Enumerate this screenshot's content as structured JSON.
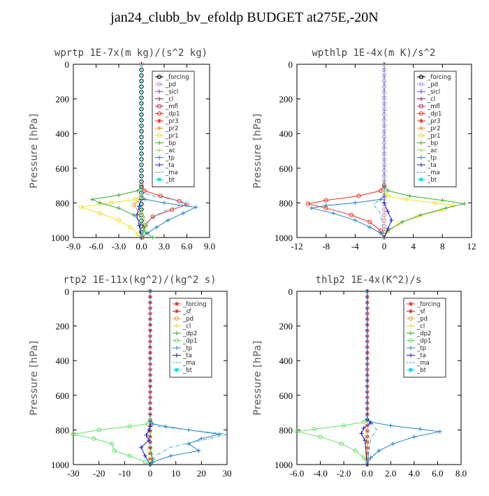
{
  "figure": {
    "title": "jan24_clubb_bv_efoldp  BUDGET at275E,-20N"
  },
  "colors": {
    "forcing": "#000000",
    "pd": "#c58ee8",
    "sicl": "#7a2fd0",
    "cl": "#8b1a5c",
    "mfl": "#cc2d5a",
    "dp1": "#e8301f",
    "dp2": "#2ea02e",
    "pr3": "#e8261e",
    "pr2": "#f0a030",
    "pr1": "#f2e020",
    "bp": "#33aa33",
    "ac": "#80e040",
    "tp": "#2080c8",
    "ta": "#1a1ad0",
    "ma": "#30a8d8",
    "bt": "#20d8e8",
    "sf": "#e02020",
    "cl_y": "#f0d020",
    "dp1_g": "#66e066"
  },
  "chart_data": [
    {
      "type": "line",
      "title": "wprtp  1E-7x(m kg)/(s^2 kg)",
      "ylabel": "Pressure [hPa]",
      "xlim": [
        -9,
        9
      ],
      "ylim": [
        0,
        1000
      ],
      "y_inverted": true,
      "xticks": [
        "-9.0",
        "-6.0",
        "-3.0",
        "0.0",
        "3.0",
        "6.0",
        "9.0"
      ],
      "yticks": [
        "0",
        "200",
        "400",
        "600",
        "800",
        "1000"
      ],
      "legend_position": "top-right",
      "legend": [
        "_forcing",
        "_pd",
        "_sicl",
        "_cl",
        "_mfl",
        "_dp1",
        "_pr3",
        "_pr2",
        "_pr1",
        "_bp",
        "_ac",
        "_tp",
        "_ta",
        "_ma",
        "_bt"
      ],
      "series": [
        {
          "name": "_forcing",
          "color": "#000000",
          "marker": "circle",
          "dense": true,
          "x": [
            0,
            0,
            0,
            0,
            0,
            0,
            0,
            0,
            0,
            0,
            0
          ],
          "y": [
            0,
            100,
            200,
            300,
            400,
            500,
            600,
            700,
            800,
            900,
            1000
          ]
        },
        {
          "name": "_pd",
          "color": "#c58ee8",
          "marker": "none",
          "x": [
            0,
            0,
            0,
            0
          ],
          "y": [
            0,
            500,
            800,
            1000
          ]
        },
        {
          "name": "_sicl",
          "color": "#7a2fd0",
          "marker": "none",
          "x": [
            0,
            0,
            0
          ],
          "y": [
            0,
            800,
            1000
          ]
        },
        {
          "name": "_cl",
          "color": "#8b1a5c",
          "marker": "none",
          "x": [
            0,
            0,
            0
          ],
          "y": [
            0,
            800,
            1000
          ]
        },
        {
          "name": "_mfl",
          "color": "#cc2d5a",
          "marker": "none",
          "x": [
            0,
            0,
            0
          ],
          "y": [
            0,
            800,
            1000
          ]
        },
        {
          "name": "_dp1",
          "color": "#e8301f",
          "marker": "circle",
          "x": [
            0,
            0,
            0.4,
            2.5,
            5,
            6,
            4,
            1.5,
            0.5,
            0.1
          ],
          "y": [
            0,
            700,
            730,
            760,
            790,
            810,
            840,
            880,
            930,
            1000
          ]
        },
        {
          "name": "_pr1",
          "color": "#f2e020",
          "marker": "circle",
          "x": [
            0,
            0,
            -0.8,
            -4,
            -8,
            -5.5,
            -3,
            -1.5,
            -0.5,
            0
          ],
          "y": [
            0,
            760,
            780,
            800,
            825,
            860,
            900,
            940,
            980,
            1000
          ]
        },
        {
          "name": "_pr2",
          "color": "#f0a030",
          "marker": "circle",
          "x": [
            0,
            0,
            -0.3,
            -1,
            -0.3,
            0
          ],
          "y": [
            0,
            770,
            790,
            810,
            860,
            1000
          ]
        },
        {
          "name": "_bp",
          "color": "#33aa33",
          "marker": "plus",
          "x": [
            0,
            0,
            -0.5,
            -3,
            -6.5,
            -5.5,
            -3,
            -1,
            0,
            0.5,
            1.5
          ],
          "y": [
            0,
            710,
            730,
            755,
            780,
            800,
            830,
            870,
            920,
            970,
            1000
          ]
        },
        {
          "name": "_ac",
          "color": "#80e040",
          "marker": "plus",
          "x": [
            0,
            0,
            0.3,
            0.6,
            0.3,
            0
          ],
          "y": [
            0,
            820,
            880,
            930,
            970,
            1000
          ]
        },
        {
          "name": "_tp",
          "color": "#2080c8",
          "marker": "plus",
          "x": [
            0,
            0,
            0.5,
            3,
            7.2,
            5.5,
            3.5,
            2,
            0.8,
            0
          ],
          "y": [
            0,
            760,
            780,
            800,
            825,
            860,
            900,
            940,
            975,
            1000
          ]
        },
        {
          "name": "_ta",
          "color": "#1a1ad0",
          "marker": "plus",
          "x": [
            0,
            0,
            -0.3,
            -0.6,
            -0.3,
            0
          ],
          "y": [
            0,
            780,
            820,
            870,
            930,
            1000
          ]
        },
        {
          "name": "_ma",
          "color": "#30a8d8",
          "marker": "none",
          "dash": true,
          "x": [
            0,
            0,
            1.5,
            4,
            6,
            4,
            2,
            0.5,
            0
          ],
          "y": [
            0,
            740,
            760,
            780,
            800,
            830,
            870,
            920,
            1000
          ]
        },
        {
          "name": "_bt",
          "color": "#20d8e8",
          "marker": "none",
          "x": [
            0,
            0,
            0
          ],
          "y": [
            0,
            800,
            1000
          ]
        }
      ]
    },
    {
      "type": "line",
      "title": "wpthlp  1E-4x(m K)/s^2",
      "ylabel": "Pressure [hPa]",
      "xlim": [
        -12,
        12
      ],
      "ylim": [
        0,
        1000
      ],
      "y_inverted": true,
      "xticks": [
        "-12",
        "-8",
        "-4",
        "0",
        "4",
        "8",
        "12"
      ],
      "yticks": [
        "0",
        "200",
        "400",
        "600",
        "800",
        "1000"
      ],
      "legend_position": "top-right",
      "legend": [
        "_forcing",
        "_pd",
        "_sicl",
        "_cl",
        "_mfl",
        "_dp1",
        "_pr3",
        "_pr2",
        "_pr1",
        "_bp",
        "_ac",
        "_tp",
        "_ta",
        "_ma",
        "_bt"
      ],
      "series": [
        {
          "name": "_forcing",
          "color": "#000000",
          "marker": "none",
          "x": [
            0,
            0
          ],
          "y": [
            0,
            1000
          ]
        },
        {
          "name": "_pd",
          "color": "#c58ee8",
          "marker": "circle",
          "dense": true,
          "x": [
            0,
            0,
            0,
            0,
            0,
            0,
            0,
            0,
            0,
            0,
            0
          ],
          "y": [
            0,
            100,
            200,
            300,
            400,
            500,
            600,
            700,
            800,
            900,
            1000
          ]
        },
        {
          "name": "_pr2",
          "color": "#f0a030",
          "marker": "none",
          "x": [
            0,
            0,
            0
          ],
          "y": [
            0,
            500,
            1000
          ]
        },
        {
          "name": "_dp1",
          "color": "#e8301f",
          "marker": "circle",
          "x": [
            0,
            0,
            -0.5,
            -3.5,
            -8,
            -10.5,
            -8,
            -4.5,
            -2,
            -0.5,
            0
          ],
          "y": [
            0,
            700,
            730,
            760,
            785,
            805,
            830,
            870,
            910,
            960,
            1000
          ]
        },
        {
          "name": "_pr1",
          "color": "#f2e020",
          "marker": "circle",
          "x": [
            0,
            0,
            0.5,
            3,
            7,
            9.5,
            8,
            4.5,
            2,
            0.5,
            0
          ],
          "y": [
            0,
            740,
            760,
            780,
            800,
            815,
            840,
            880,
            920,
            965,
            1000
          ]
        },
        {
          "name": "_bp",
          "color": "#33aa33",
          "marker": "plus",
          "x": [
            0,
            0,
            0.5,
            3.5,
            8,
            11,
            8.5,
            5,
            2.5,
            0.5,
            0
          ],
          "y": [
            0,
            700,
            730,
            760,
            785,
            805,
            830,
            870,
            910,
            960,
            1000
          ]
        },
        {
          "name": "_tp",
          "color": "#2080c8",
          "marker": "plus",
          "x": [
            0,
            0,
            -0.5,
            -4,
            -8,
            -10,
            -7,
            -4,
            -2,
            -0.5,
            0
          ],
          "y": [
            0,
            760,
            780,
            800,
            815,
            830,
            860,
            900,
            940,
            975,
            1000
          ]
        },
        {
          "name": "_ta",
          "color": "#1a1ad0",
          "marker": "plus",
          "x": [
            0,
            0,
            0.5,
            1,
            0.5,
            0
          ],
          "y": [
            0,
            800,
            850,
            900,
            950,
            1000
          ]
        },
        {
          "name": "_ma",
          "color": "#30a8d8",
          "marker": "none",
          "dash": true,
          "x": [
            0,
            0,
            -0.5,
            -1.5,
            -0.5,
            0
          ],
          "y": [
            0,
            760,
            780,
            810,
            860,
            1000
          ]
        }
      ]
    },
    {
      "type": "line",
      "title": "rtp2  1E-11x(kg^2)/(kg^2 s)",
      "ylabel": "Pressure [hPa]",
      "xlim": [
        -30,
        30
      ],
      "ylim": [
        0,
        1000
      ],
      "y_inverted": true,
      "xticks": [
        "-30",
        "-20",
        "-10",
        "0",
        "10",
        "20",
        "30"
      ],
      "yticks": [
        "0",
        "200",
        "400",
        "600",
        "800",
        "1000"
      ],
      "legend_position": "top-right",
      "legend": [
        "_forcing",
        "_sf",
        "_pd",
        "_cl",
        "_dp2",
        "_dp1",
        "_tp",
        "_ta",
        "_ma",
        "_bt"
      ],
      "series": [
        {
          "name": "_forcing",
          "color": "#e02020",
          "marker": "star",
          "dense": true,
          "x": [
            0,
            0,
            0,
            0,
            0,
            0,
            0,
            0,
            0,
            0,
            0
          ],
          "y": [
            0,
            100,
            200,
            300,
            400,
            500,
            600,
            700,
            800,
            900,
            1000
          ]
        },
        {
          "name": "_sf",
          "color": "#e02020",
          "marker": "none",
          "x": [
            0,
            0
          ],
          "y": [
            0,
            1000
          ]
        },
        {
          "name": "_cl",
          "color": "#f0d020",
          "marker": "none",
          "x": [
            0,
            0
          ],
          "y": [
            0,
            1000
          ]
        },
        {
          "name": "_dp1",
          "color": "#66e066",
          "marker": "circle",
          "x": [
            0,
            0,
            -1,
            -8,
            -20,
            -30,
            -22,
            -15,
            -14,
            -8,
            -2,
            0
          ],
          "y": [
            0,
            750,
            765,
            780,
            800,
            825,
            850,
            880,
            920,
            950,
            985,
            1000
          ]
        },
        {
          "name": "_dp2",
          "color": "#2ea02e",
          "marker": "plus",
          "x": [
            0,
            0,
            0.5,
            1,
            0.5,
            0
          ],
          "y": [
            0,
            900,
            940,
            970,
            990,
            1000
          ]
        },
        {
          "name": "_tp",
          "color": "#2080c8",
          "marker": "plus",
          "x": [
            0,
            0,
            1,
            6,
            15,
            27,
            20,
            15,
            19,
            8,
            1,
            0
          ],
          "y": [
            0,
            750,
            765,
            780,
            800,
            825,
            850,
            880,
            920,
            950,
            985,
            1000
          ]
        },
        {
          "name": "_ta",
          "color": "#1a1ad0",
          "marker": "plus",
          "x": [
            0,
            0,
            -0.5,
            -1.5,
            -0.5,
            -3.5,
            -2,
            0
          ],
          "y": [
            0,
            780,
            800,
            830,
            860,
            900,
            950,
            1000
          ]
        },
        {
          "name": "_ma",
          "color": "#30a8d8",
          "marker": "none",
          "dash": true,
          "x": [
            0,
            0,
            3,
            15,
            30,
            20,
            8,
            2,
            0
          ],
          "y": [
            0,
            760,
            780,
            800,
            825,
            860,
            900,
            950,
            1000
          ]
        }
      ]
    },
    {
      "type": "line",
      "title": "thlp2  1E-4x(K^2)/s",
      "ylabel": "Pressure [hPa]",
      "xlim": [
        -6,
        8
      ],
      "ylim": [
        0,
        1000
      ],
      "y_inverted": true,
      "xticks": [
        "-6.0",
        "-4.0",
        "-2.0",
        "0.0",
        "2.0",
        "4.0",
        "6.0",
        "8.0"
      ],
      "yticks": [
        "0",
        "200",
        "400",
        "600",
        "800",
        "1000"
      ],
      "legend_position": "top-right",
      "legend": [
        "_forcing",
        "_sf",
        "_pd",
        "_cl",
        "_dp2",
        "_dp1",
        "_tp",
        "_ta",
        "_ma",
        "_bt"
      ],
      "series": [
        {
          "name": "_forcing",
          "color": "#e02020",
          "marker": "star",
          "dense": true,
          "x": [
            0,
            0,
            0,
            0,
            0,
            0,
            0,
            0,
            0,
            0,
            0
          ],
          "y": [
            0,
            100,
            200,
            300,
            400,
            500,
            600,
            700,
            800,
            900,
            1000
          ]
        },
        {
          "name": "_sf",
          "color": "#e02020",
          "marker": "none",
          "x": [
            0,
            0
          ],
          "y": [
            0,
            1000
          ]
        },
        {
          "name": "_cl",
          "color": "#f0d020",
          "marker": "none",
          "x": [
            0,
            0
          ],
          "y": [
            0,
            1000
          ]
        },
        {
          "name": "_dp1",
          "color": "#66e066",
          "marker": "circle",
          "x": [
            0,
            0,
            -0.3,
            -2,
            -4.5,
            -6,
            -4,
            -2.2,
            -1,
            -0.3,
            0
          ],
          "y": [
            0,
            740,
            755,
            775,
            795,
            810,
            840,
            880,
            920,
            960,
            1000
          ]
        },
        {
          "name": "_tp",
          "color": "#2080c8",
          "marker": "plus",
          "x": [
            0,
            0,
            0.3,
            2,
            4.5,
            6.2,
            4,
            2.2,
            1,
            0.3,
            0
          ],
          "y": [
            0,
            740,
            755,
            775,
            795,
            810,
            840,
            880,
            920,
            960,
            1000
          ]
        },
        {
          "name": "_ta",
          "color": "#1a1ad0",
          "marker": "plus",
          "x": [
            0,
            0,
            0.3,
            -0.3,
            -0.5,
            -0.2,
            0
          ],
          "y": [
            0,
            740,
            760,
            790,
            820,
            860,
            1000
          ]
        },
        {
          "name": "_ma",
          "color": "#30a8d8",
          "marker": "none",
          "dash": true,
          "x": [
            0,
            0,
            0.5,
            0.8,
            0.3,
            0
          ],
          "y": [
            0,
            740,
            770,
            800,
            850,
            1000
          ]
        }
      ]
    }
  ]
}
